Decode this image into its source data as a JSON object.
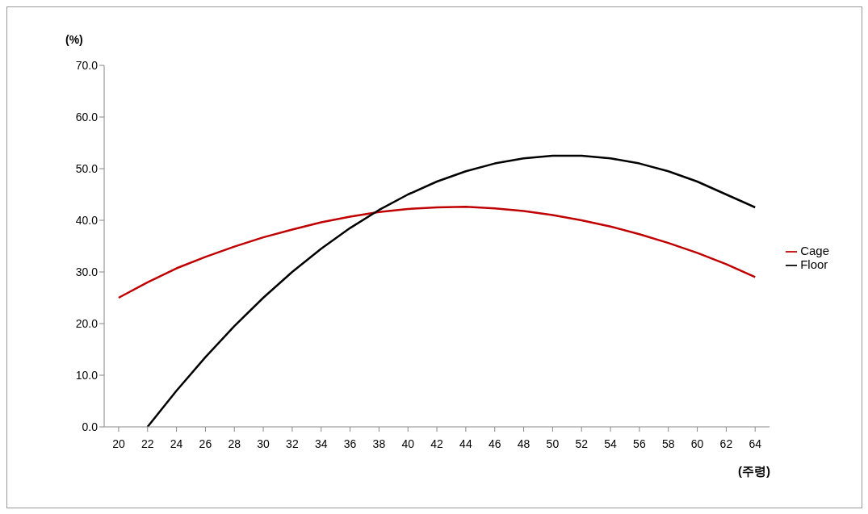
{
  "chart_data": {
    "type": "line",
    "ylabel": "(%)",
    "xlabel": "(주령)",
    "x": [
      20,
      22,
      24,
      26,
      28,
      30,
      32,
      34,
      36,
      38,
      40,
      42,
      44,
      46,
      48,
      50,
      52,
      54,
      56,
      58,
      60,
      62,
      64
    ],
    "series": [
      {
        "name": "Cage",
        "color": "#c00000",
        "values": [
          25.0,
          28.0,
          30.7,
          32.9,
          34.9,
          36.7,
          38.2,
          39.6,
          40.7,
          41.6,
          42.2,
          42.5,
          42.6,
          42.3,
          41.8,
          41.0,
          40.0,
          38.8,
          37.3,
          35.6,
          33.7,
          31.5,
          29.0
        ]
      },
      {
        "name": "Floor",
        "color": "#000000",
        "values": [
          null,
          0.0,
          7.0,
          13.5,
          19.5,
          25.0,
          30.0,
          34.5,
          38.5,
          42.0,
          45.0,
          47.5,
          49.5,
          51.0,
          52.0,
          52.5,
          52.5,
          52.0,
          51.0,
          49.5,
          47.5,
          45.0,
          42.5
        ]
      }
    ],
    "xlim": [
      19,
      65
    ],
    "xticks": [
      20,
      22,
      24,
      26,
      28,
      30,
      32,
      34,
      36,
      38,
      40,
      42,
      44,
      46,
      48,
      50,
      52,
      54,
      56,
      58,
      60,
      62,
      64
    ],
    "ylim": [
      0,
      70
    ],
    "yticks": [
      {
        "value": 0,
        "label": "0.0"
      },
      {
        "value": 10,
        "label": "10.0"
      },
      {
        "value": 20,
        "label": "20.0"
      },
      {
        "value": 30,
        "label": "30.0"
      },
      {
        "value": 40,
        "label": "40.0"
      },
      {
        "value": 50,
        "label": "50.0"
      },
      {
        "value": 60,
        "label": "60.0"
      },
      {
        "value": 70,
        "label": "70.0"
      }
    ],
    "grid": false,
    "legend": "right",
    "marker": "none",
    "line_style": "solid"
  }
}
